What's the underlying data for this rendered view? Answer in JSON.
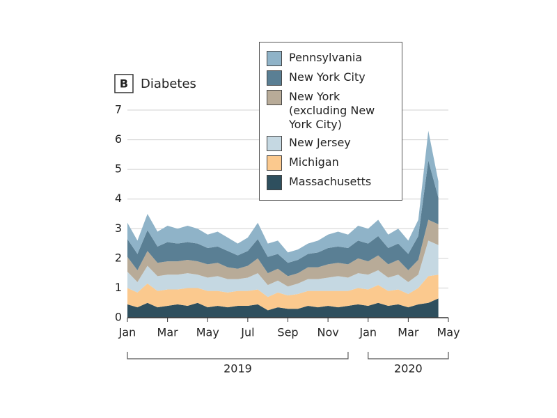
{
  "chart_data": {
    "type": "stacked-area",
    "panel_label": "B",
    "title": "Diabetes",
    "x": [
      0,
      0.5,
      1,
      1.5,
      2,
      2.5,
      3,
      3.5,
      4,
      4.5,
      5,
      5.5,
      6,
      6.5,
      7,
      7.5,
      8,
      8.5,
      9,
      9.5,
      10,
      10.5,
      11,
      11.5,
      12,
      12.5,
      13,
      13.5,
      14,
      14.5,
      15,
      15.5
    ],
    "xlim": [
      0,
      16
    ],
    "xticks": [
      {
        "value": 0,
        "label": "Jan"
      },
      {
        "value": 2,
        "label": "Mar"
      },
      {
        "value": 4,
        "label": "May"
      },
      {
        "value": 6,
        "label": "Jul"
      },
      {
        "value": 8,
        "label": "Sep"
      },
      {
        "value": 10,
        "label": "Nov"
      },
      {
        "value": 12,
        "label": "Jan"
      },
      {
        "value": 14,
        "label": "Mar"
      },
      {
        "value": 16,
        "label": "May"
      }
    ],
    "year_groups": [
      {
        "label": "2019",
        "from": 0,
        "to": 11
      },
      {
        "label": "2020",
        "from": 12,
        "to": 16
      }
    ],
    "ylim": [
      0,
      7
    ],
    "yticks": [
      0,
      1,
      2,
      3,
      4,
      5,
      6,
      7
    ],
    "grid": true,
    "series": [
      {
        "name": "Massachusetts",
        "color": "#2e4f5e",
        "values": [
          0.45,
          0.35,
          0.5,
          0.35,
          0.4,
          0.45,
          0.4,
          0.5,
          0.35,
          0.4,
          0.35,
          0.4,
          0.4,
          0.45,
          0.25,
          0.35,
          0.3,
          0.3,
          0.4,
          0.35,
          0.4,
          0.35,
          0.4,
          0.45,
          0.4,
          0.5,
          0.4,
          0.45,
          0.35,
          0.45,
          0.5,
          0.65
        ]
      },
      {
        "name": "Michigan",
        "color": "#fbc98e",
        "values": [
          0.55,
          0.5,
          0.65,
          0.55,
          0.55,
          0.5,
          0.6,
          0.5,
          0.55,
          0.5,
          0.5,
          0.5,
          0.5,
          0.5,
          0.45,
          0.5,
          0.45,
          0.5,
          0.5,
          0.55,
          0.5,
          0.55,
          0.5,
          0.55,
          0.55,
          0.6,
          0.5,
          0.5,
          0.45,
          0.55,
          0.9,
          0.8
        ]
      },
      {
        "name": "New Jersey",
        "color": "#c5d8e2",
        "values": [
          0.55,
          0.35,
          0.6,
          0.5,
          0.5,
          0.5,
          0.5,
          0.45,
          0.45,
          0.5,
          0.45,
          0.4,
          0.45,
          0.55,
          0.4,
          0.4,
          0.3,
          0.35,
          0.4,
          0.4,
          0.45,
          0.5,
          0.45,
          0.5,
          0.5,
          0.5,
          0.45,
          0.5,
          0.4,
          0.45,
          1.2,
          1.0
        ]
      },
      {
        "name": "New York (excluding New York City)",
        "color": "#b8ab98",
        "values": [
          0.5,
          0.4,
          0.5,
          0.45,
          0.45,
          0.45,
          0.45,
          0.45,
          0.45,
          0.45,
          0.4,
          0.35,
          0.4,
          0.5,
          0.4,
          0.4,
          0.35,
          0.35,
          0.4,
          0.4,
          0.45,
          0.45,
          0.45,
          0.5,
          0.45,
          0.5,
          0.45,
          0.5,
          0.4,
          0.5,
          0.7,
          0.7
        ]
      },
      {
        "name": "New York City",
        "color": "#5a7f94",
        "values": [
          0.6,
          0.55,
          0.7,
          0.55,
          0.65,
          0.6,
          0.6,
          0.6,
          0.55,
          0.55,
          0.55,
          0.45,
          0.5,
          0.65,
          0.55,
          0.5,
          0.45,
          0.45,
          0.45,
          0.5,
          0.55,
          0.55,
          0.55,
          0.6,
          0.6,
          0.65,
          0.55,
          0.55,
          0.55,
          0.8,
          2.0,
          0.9
        ]
      },
      {
        "name": "Pennsylvania",
        "color": "#8fb3c8",
        "values": [
          0.55,
          0.45,
          0.55,
          0.5,
          0.55,
          0.5,
          0.55,
          0.5,
          0.45,
          0.5,
          0.45,
          0.4,
          0.45,
          0.55,
          0.45,
          0.45,
          0.35,
          0.35,
          0.35,
          0.4,
          0.45,
          0.5,
          0.45,
          0.5,
          0.5,
          0.55,
          0.45,
          0.5,
          0.45,
          0.55,
          1.0,
          0.55
        ]
      }
    ]
  }
}
